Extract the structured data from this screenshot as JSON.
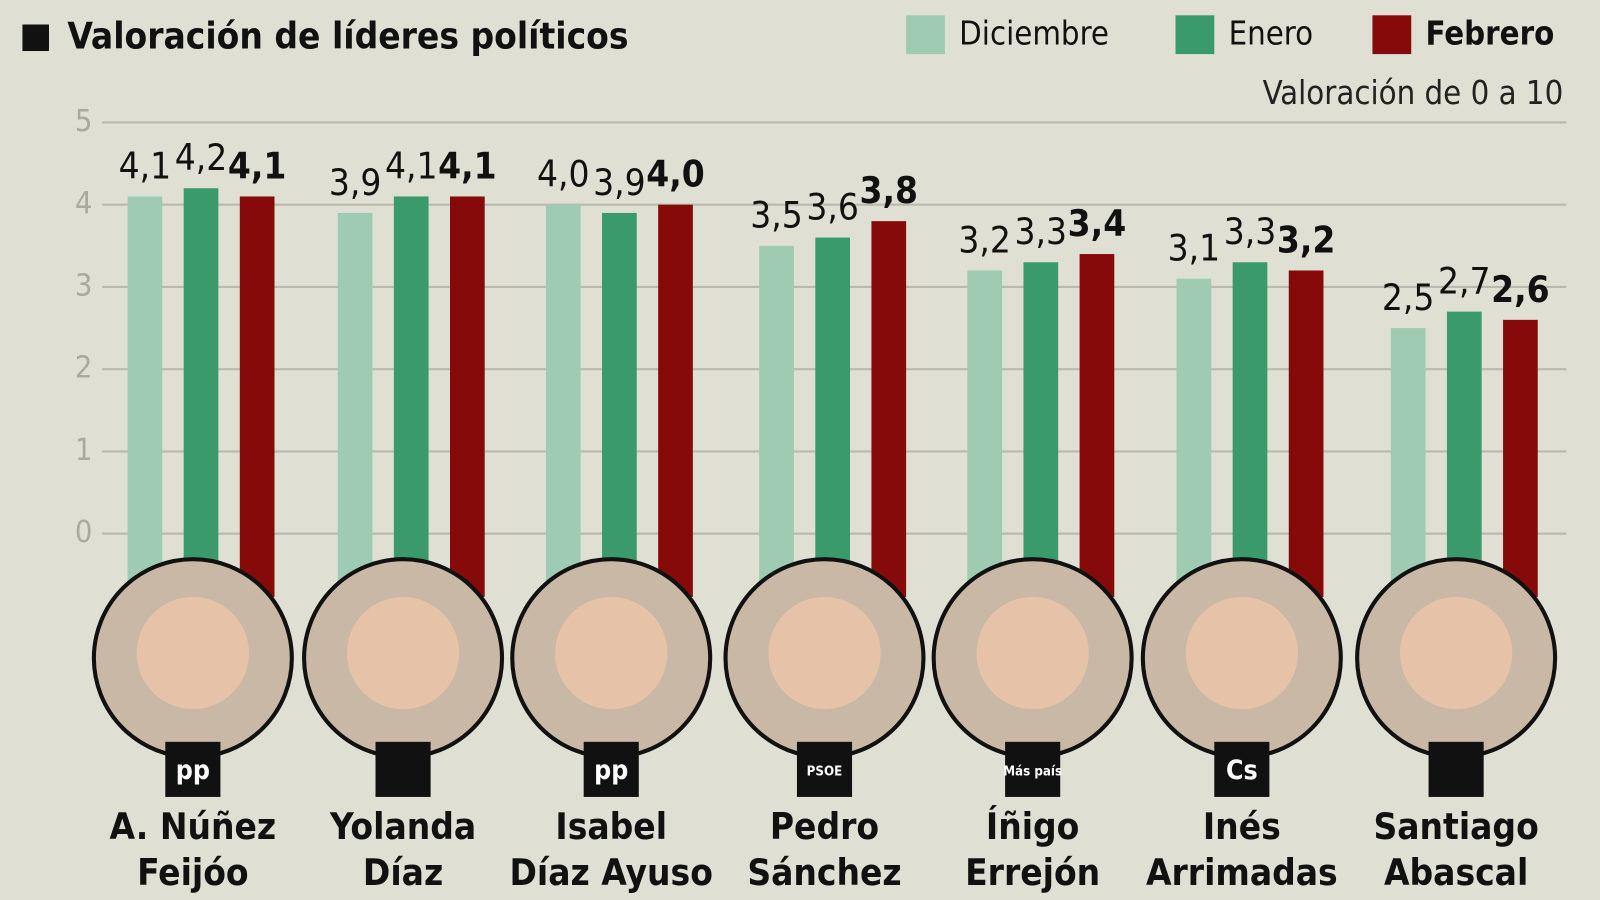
{
  "chart_data": {
    "type": "bar",
    "title": "Valoración de líderes políticos",
    "subtitle": "Valoración de 0 a 10",
    "categories": [
      [
        "A. Núñez",
        "Feijóo"
      ],
      [
        "Yolanda",
        "Díaz"
      ],
      [
        "Isabel",
        "Díaz Ayuso"
      ],
      [
        "Pedro",
        "Sánchez"
      ],
      [
        "Íñigo",
        "Errejón"
      ],
      [
        "Inés",
        "Arrimadas"
      ],
      [
        "Santiago",
        "Abascal"
      ]
    ],
    "party_logos": [
      "pp",
      null,
      "pp",
      "PSOE",
      "Más país",
      "Cs",
      null
    ],
    "series": [
      {
        "name": "Diciembre",
        "color": "#9fcbb3",
        "values": [
          4.1,
          3.9,
          4.0,
          3.5,
          3.2,
          3.1,
          2.5
        ],
        "value_labels": [
          "4,1",
          "3,9",
          "4,0",
          "3,5",
          "3,2",
          "3,1",
          "2,5"
        ]
      },
      {
        "name": "Enero",
        "color": "#3a9a6b",
        "values": [
          4.2,
          4.1,
          3.9,
          3.6,
          3.3,
          3.3,
          2.7
        ],
        "value_labels": [
          "4,2",
          "4,1",
          "3,9",
          "3,6",
          "3,3",
          "3,3",
          "2,7"
        ]
      },
      {
        "name": "Febrero",
        "color": "#870a0a",
        "values": [
          4.1,
          4.1,
          4.0,
          3.8,
          3.4,
          3.2,
          2.6
        ],
        "value_labels": [
          "4,1",
          "4,1",
          "4,0",
          "3,8",
          "3,4",
          "3,2",
          "2,6"
        ]
      }
    ],
    "ylim": [
      0,
      5
    ],
    "yticks": [
      0,
      1,
      2,
      3,
      4,
      5
    ],
    "grid": true
  }
}
